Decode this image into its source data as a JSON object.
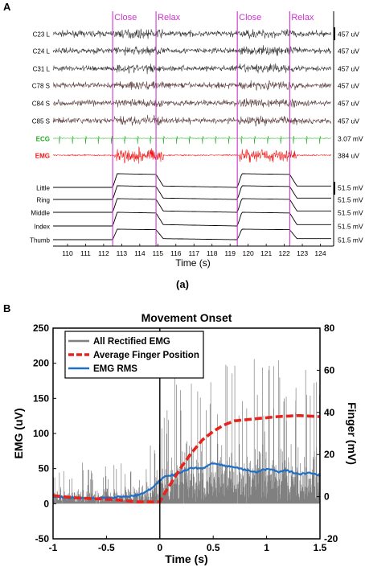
{
  "panel_a": {
    "label": "A",
    "events": [
      {
        "label": "Close",
        "color": "#cc33cc"
      },
      {
        "label": "Relax",
        "color": "#cc33cc"
      },
      {
        "label": "Close",
        "color": "#cc33cc"
      },
      {
        "label": "Relax",
        "color": "#cc33cc"
      }
    ],
    "caption": "(a)"
  },
  "panel_b": {
    "label": "B"
  },
  "chart_data": [
    {
      "type": "line",
      "title": "",
      "xlabel": "Time (s)",
      "xlim": [
        109.2,
        124.6
      ],
      "xticks": [
        110,
        111,
        112,
        113,
        114,
        115,
        116,
        117,
        118,
        119,
        120,
        121,
        122,
        123,
        124
      ],
      "event_times": [
        112.5,
        114.9,
        119.4,
        122.3
      ],
      "series": [
        {
          "name": "C23 L",
          "color": "#333333",
          "kind": "emg",
          "scale": "457 uV"
        },
        {
          "name": "C24 L",
          "color": "#333333",
          "kind": "emg",
          "scale": "457 uV"
        },
        {
          "name": "C31 L",
          "color": "#333333",
          "kind": "emg",
          "scale": "457 uV"
        },
        {
          "name": "C78 S",
          "color": "#5a3d3d",
          "kind": "emg",
          "scale": "457 uV"
        },
        {
          "name": "C84 S",
          "color": "#5a3d3d",
          "kind": "emg",
          "scale": "457 uV"
        },
        {
          "name": "C85 S",
          "color": "#5a3d3d",
          "kind": "emg",
          "scale": "457 uV"
        },
        {
          "name": "ECG",
          "color": "#22aa22",
          "kind": "ecg",
          "scale": "3.07 mV"
        },
        {
          "name": "EMG",
          "color": "#ee1111",
          "kind": "emg_red",
          "scale": "384 uV"
        },
        {
          "name": "Little",
          "color": "#000000",
          "kind": "finger",
          "scale": "51.5 mV"
        },
        {
          "name": "Ring",
          "color": "#000000",
          "kind": "finger",
          "scale": "51.5 mV"
        },
        {
          "name": "Middle",
          "color": "#000000",
          "kind": "finger",
          "scale": "51.5 mV"
        },
        {
          "name": "Index",
          "color": "#000000",
          "kind": "finger",
          "scale": "51.5 mV"
        },
        {
          "name": "Thumb",
          "color": "#000000",
          "kind": "finger",
          "scale": "51.5 mV"
        }
      ],
      "finger_levels": [
        {
          "t": 112.5,
          "v": 0
        },
        {
          "t": 112.75,
          "v": 1
        },
        {
          "t": 114.9,
          "v": 0.95
        },
        {
          "t": 115.3,
          "v": 0.1
        },
        {
          "t": 119.4,
          "v": 0
        },
        {
          "t": 119.65,
          "v": 1
        },
        {
          "t": 122.3,
          "v": 0.95
        },
        {
          "t": 122.7,
          "v": 0.1
        }
      ]
    },
    {
      "type": "line",
      "title": "Movement Onset",
      "xlabel": "Time (s)",
      "ylabel": "EMG (uV)",
      "ylabel_right": "Finger (mV)",
      "xlim": [
        -1,
        1.5
      ],
      "ylim": [
        -50,
        250
      ],
      "ylim_right": [
        -20,
        80
      ],
      "xticks": [
        -1,
        -0.5,
        0,
        0.5,
        1,
        1.5
      ],
      "yticks": [
        -50,
        0,
        50,
        100,
        150,
        200,
        250
      ],
      "yticks_right": [
        -20,
        0,
        20,
        40,
        60,
        80
      ],
      "onset_x": 0,
      "legend_position": "top-left",
      "series": [
        {
          "name": "All Rectified EMG",
          "color": "#808080",
          "axis": "left",
          "x": [
            -1.0,
            -0.8,
            -0.6,
            -0.4,
            -0.2,
            -0.05,
            0.0,
            0.2,
            0.4,
            0.6,
            0.8,
            1.0,
            1.2,
            1.4,
            1.5
          ],
          "envelope": [
            45,
            50,
            45,
            45,
            50,
            70,
            120,
            160,
            175,
            165,
            170,
            180,
            165,
            160,
            150
          ]
        },
        {
          "name": "Average Finger Position",
          "color": "#e8221c",
          "axis": "right",
          "x": [
            -1.0,
            -0.8,
            -0.6,
            -0.4,
            -0.2,
            -0.1,
            0.0,
            0.05,
            0.1,
            0.2,
            0.3,
            0.4,
            0.5,
            0.6,
            0.7,
            0.9,
            1.1,
            1.3,
            1.5
          ],
          "values": [
            0.5,
            -0.5,
            -1,
            -1.5,
            -2.5,
            -2.5,
            -2.5,
            2,
            6,
            14,
            21,
            27,
            31,
            34,
            36,
            37,
            38,
            38.5,
            38
          ]
        },
        {
          "name": "EMG RMS",
          "color": "#1f6fc6",
          "axis": "left",
          "x": [
            -1.0,
            -0.8,
            -0.6,
            -0.4,
            -0.2,
            -0.1,
            0.0,
            0.05,
            0.1,
            0.2,
            0.3,
            0.4,
            0.5,
            0.6,
            0.7,
            0.8,
            0.9,
            1.0,
            1.1,
            1.2,
            1.3,
            1.4,
            1.5
          ],
          "values": [
            10,
            8,
            8,
            9,
            12,
            20,
            32,
            40,
            40,
            45,
            52,
            50,
            58,
            54,
            52,
            48,
            45,
            50,
            46,
            47,
            42,
            44,
            40
          ]
        }
      ]
    }
  ]
}
